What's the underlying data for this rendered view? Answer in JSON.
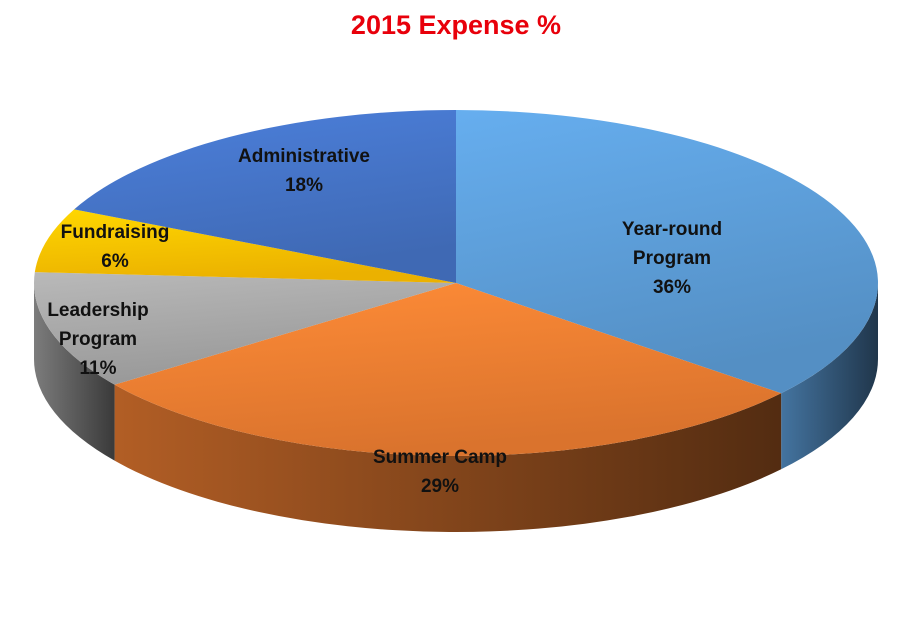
{
  "chart_data": {
    "type": "pie",
    "title": "2015 Expense %",
    "legend": "none",
    "slices": [
      {
        "name": "Year-round Program",
        "label_lines": [
          "Year-round",
          "Program"
        ],
        "value": 36,
        "display": "36%",
        "color": "#5b9bd5"
      },
      {
        "name": "Summer Camp",
        "label_lines": [
          "Summer Camp"
        ],
        "value": 29,
        "display": "29%",
        "color": "#ed7d31"
      },
      {
        "name": "Leadership Program",
        "label_lines": [
          "Leadership",
          "Program"
        ],
        "value": 11,
        "display": "11%",
        "color": "#a5a5a5"
      },
      {
        "name": "Fundraising",
        "label_lines": [
          "Fundraising"
        ],
        "value": 6,
        "display": "6%",
        "color": "#ffc000"
      },
      {
        "name": "Administrative",
        "label_lines": [
          "Administrative"
        ],
        "value": 18,
        "display": "18%",
        "color": "#4472c4"
      }
    ]
  }
}
